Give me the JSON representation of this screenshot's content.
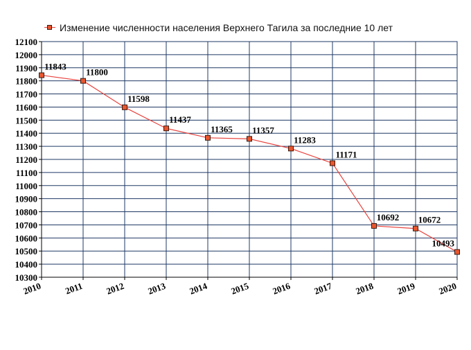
{
  "chart_data": {
    "type": "line",
    "title": "",
    "xlabel": "",
    "ylabel": "",
    "legend_position": "top-left",
    "grid": true,
    "ylim": [
      10300,
      12100
    ],
    "y_tick_step": 100,
    "categories": [
      "2010",
      "2011",
      "2012",
      "2013",
      "2014",
      "2015",
      "2016",
      "2017",
      "2018",
      "2019",
      "2020"
    ],
    "series": [
      {
        "name": "Изменение численности населения Верхнего Тагила за последние 10 лет",
        "values": [
          11843,
          11800,
          11598,
          11437,
          11365,
          11357,
          11283,
          11171,
          10692,
          10672,
          10493
        ],
        "labels": [
          "11843",
          "11800",
          "11598",
          "11437",
          "11365",
          "11357",
          "11283",
          "11171",
          "10692",
          "10672",
          "10493"
        ]
      }
    ],
    "colors": {
      "line": "#e8413c",
      "marker_fill": "#e8562f",
      "marker_stroke": "#3a1a10",
      "grid": "#1f3864",
      "axis": "#000000"
    }
  }
}
